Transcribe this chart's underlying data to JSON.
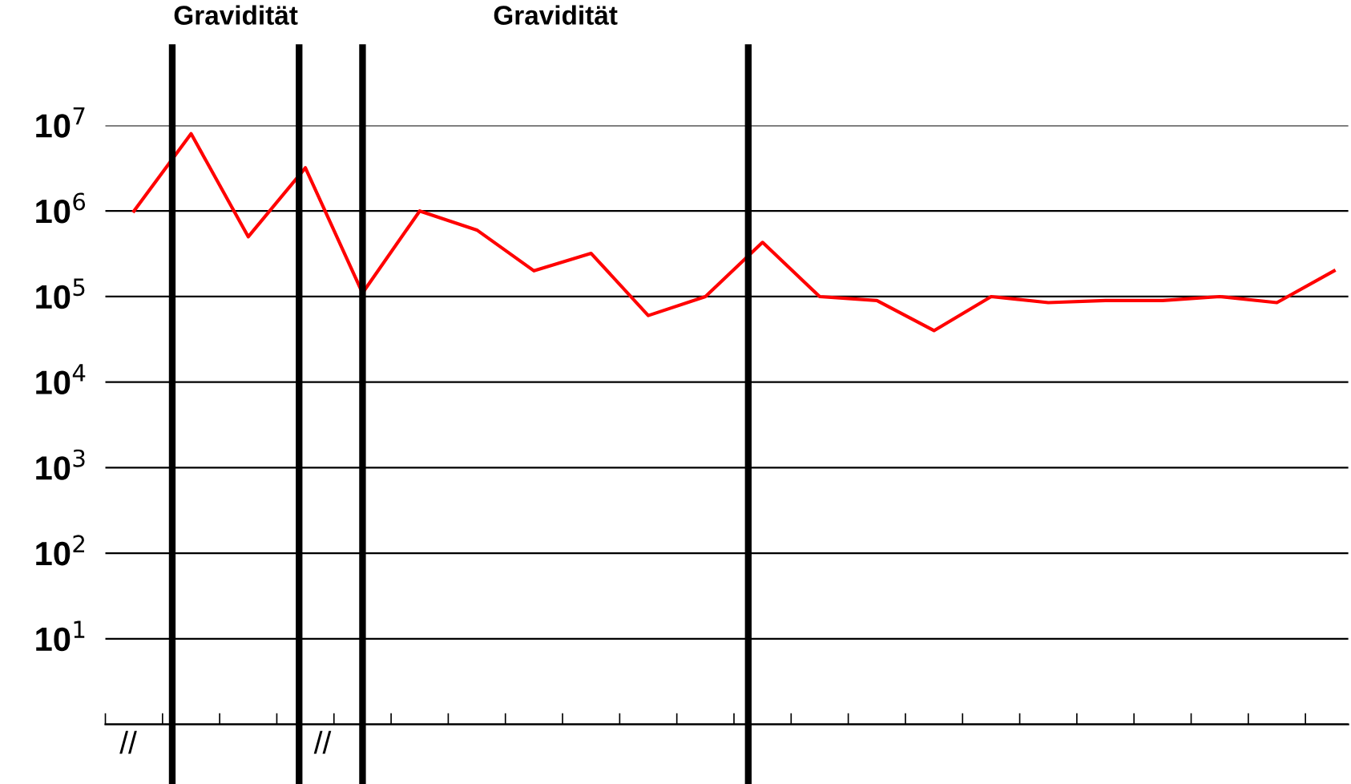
{
  "chart_data": {
    "type": "line",
    "log": "y",
    "categories": [
      null,
      null,
      null,
      null,
      null,
      null,
      null,
      null,
      null,
      null,
      null,
      null,
      null,
      null,
      null,
      null,
      null,
      null,
      null,
      null,
      null,
      null
    ],
    "series": [
      {
        "color": "#ff0000",
        "values": [
          1000000,
          8000000,
          500000,
          3200000,
          110000,
          1000000,
          600000,
          200000,
          320000,
          60000,
          100000,
          430000,
          100000,
          90000,
          40000,
          100000,
          85000,
          90000,
          90000,
          100000,
          85000,
          200000
        ]
      }
    ],
    "ylim": [
      1,
      10000000
    ],
    "yticks": [
      {
        "value": 1,
        "label": null
      },
      {
        "value": 10,
        "label": "10$^{1}$"
      },
      {
        "value": 100,
        "label": "10$^{2}$"
      },
      {
        "value": 1000,
        "label": "10$^{3}$"
      },
      {
        "value": 10000,
        "label": "10$^{4}$"
      },
      {
        "value": 100000,
        "label": "10$^{5}$"
      },
      {
        "value": 1000000,
        "label": "10$^{6}$"
      },
      {
        "value": 10000000,
        "label": "10$^{7}$"
      }
    ],
    "grid": "y",
    "marker": "none",
    "line_style": "solid",
    "annotations": [
      "Gravidität",
      "Gravidität",
      "//",
      "//"
    ]
  }
}
